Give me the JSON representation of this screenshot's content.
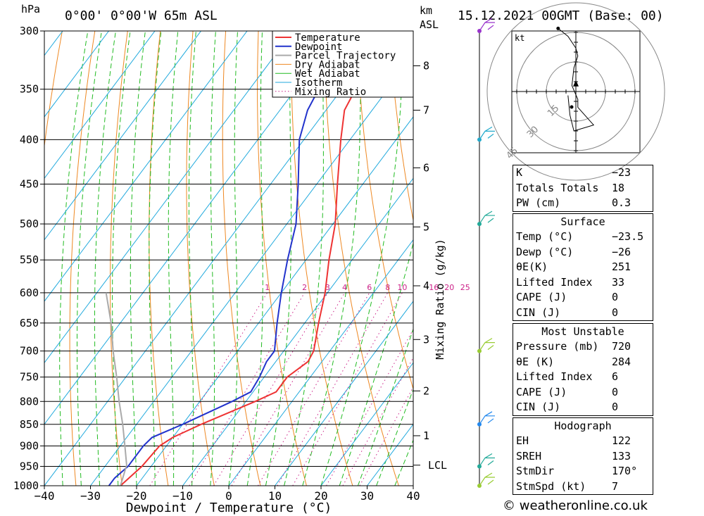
{
  "header": {
    "location": "0°00' 0°00'W 65m ASL",
    "datetime": "15.12.2021 00GMT (Base: 00)",
    "p_unit": "hPa",
    "km_unit_1": "km",
    "km_unit_2": "ASL"
  },
  "chart_data": {
    "type": "line",
    "xlabel": "Dewpoint / Temperature (°C)",
    "ylabel_right": "Mixing Ratio (g/kg)",
    "xlim": [
      -40,
      40
    ],
    "ylim": [
      1000,
      300
    ],
    "y_scale": "log",
    "pressure_levels": [
      300,
      350,
      400,
      450,
      500,
      550,
      600,
      650,
      700,
      750,
      800,
      850,
      900,
      950,
      1000
    ],
    "x_ticks": [
      -40,
      -30,
      -20,
      -10,
      0,
      10,
      20,
      30,
      40
    ],
    "x_tick_labels": [
      "−40",
      "−30",
      "−20",
      "−10",
      "0",
      "10",
      "20",
      "30",
      "40"
    ],
    "km_ticks": [
      {
        "label": "8",
        "p": 329
      },
      {
        "label": "7",
        "p": 370
      },
      {
        "label": "6",
        "p": 431
      },
      {
        "label": "5",
        "p": 504
      },
      {
        "label": "4",
        "p": 589
      },
      {
        "label": "3",
        "p": 679
      },
      {
        "label": "2",
        "p": 778
      },
      {
        "label": "1",
        "p": 876
      },
      {
        "label": "LCL",
        "p": 947
      }
    ],
    "mixing_ratios": [
      1,
      2,
      3,
      4,
      6,
      8,
      10,
      16,
      20,
      25
    ],
    "mixing_ratio_labels": [
      "1",
      "2",
      "3",
      "4",
      "6",
      "8",
      "10",
      "16",
      "20",
      "25"
    ],
    "legend": [
      "Temperature",
      "Dewpoint",
      "Parcel Trajectory",
      "Dry Adiabat",
      "Wet Adiabat",
      "Isotherm",
      "Mixing Ratio"
    ],
    "legend_placement": "top-center",
    "colors": {
      "temperature": "#ee3333",
      "dewpoint": "#2233cc",
      "parcel": "#aaaaaa",
      "dry_adiabat": "#ee8822",
      "wet_adiabat": "#22bb22",
      "isotherm": "#22aadd",
      "mixing_ratio": "#cc2288"
    },
    "series": [
      {
        "name": "Temperature",
        "points": [
          [
            1000,
            -23.5
          ],
          [
            950,
            -22
          ],
          [
            900,
            -21.5
          ],
          [
            880,
            -20
          ],
          [
            850,
            -16
          ],
          [
            800,
            -8
          ],
          [
            780,
            -5
          ],
          [
            750,
            -5
          ],
          [
            720,
            -3
          ],
          [
            700,
            -3.5
          ],
          [
            650,
            -7
          ],
          [
            600,
            -10.5
          ],
          [
            550,
            -15
          ],
          [
            500,
            -19.5
          ],
          [
            450,
            -25.5
          ],
          [
            400,
            -32
          ],
          [
            370,
            -36
          ],
          [
            350,
            -37
          ],
          [
            300,
            -43
          ]
        ]
      },
      {
        "name": "Dewpoint",
        "points": [
          [
            1000,
            -26
          ],
          [
            980,
            -26
          ],
          [
            950,
            -25
          ],
          [
            900,
            -25
          ],
          [
            880,
            -24.5
          ],
          [
            850,
            -20
          ],
          [
            800,
            -13
          ],
          [
            780,
            -10.5
          ],
          [
            750,
            -11
          ],
          [
            720,
            -12
          ],
          [
            700,
            -12
          ],
          [
            650,
            -16
          ],
          [
            600,
            -20
          ],
          [
            550,
            -24
          ],
          [
            500,
            -28
          ],
          [
            450,
            -34
          ],
          [
            400,
            -41
          ],
          [
            370,
            -44
          ],
          [
            350,
            -45
          ],
          [
            300,
            -49
          ]
        ]
      },
      {
        "name": "Parcel Trajectory",
        "points": [
          [
            1000,
            -23.5
          ],
          [
            947,
            -25.5
          ],
          [
            900,
            -29
          ],
          [
            850,
            -33
          ],
          [
            800,
            -37.5
          ],
          [
            750,
            -42
          ],
          [
            700,
            -47
          ],
          [
            650,
            -52
          ],
          [
            600,
            -58
          ]
        ]
      }
    ],
    "wind_profile": [
      {
        "p": 300,
        "color": "#9933cc"
      },
      {
        "p": 400,
        "color": "#22aacc"
      },
      {
        "p": 500,
        "color": "#22aa99"
      },
      {
        "p": 700,
        "color": "#99cc33"
      },
      {
        "p": 850,
        "color": "#2288ee"
      },
      {
        "p": 950,
        "color": "#22aa99"
      },
      {
        "p": 1000,
        "color": "#99cc33"
      }
    ],
    "hodograph": {
      "unit": "kt",
      "ring_labels": [
        "15",
        "30",
        "45"
      ],
      "path_kt": [
        [
          -4,
          -2
        ],
        [
          -3,
          -12
        ],
        [
          -1,
          -20
        ],
        [
          9,
          -17
        ],
        [
          1,
          -8
        ],
        [
          1,
          -4
        ],
        [
          -2,
          3
        ],
        [
          -1,
          12
        ],
        [
          1,
          18
        ],
        [
          0,
          22
        ],
        [
          -4,
          28
        ],
        [
          -9,
          32
        ]
      ],
      "storm_motion": [
        0,
        4
      ]
    }
  },
  "indices": [
    {
      "label": "K",
      "value": "−23"
    },
    {
      "label": "Totals Totals",
      "value": "18"
    },
    {
      "label": "PW (cm)",
      "value": "0.3"
    }
  ],
  "surface": {
    "title": "Surface",
    "rows": [
      {
        "label": "Temp (°C)",
        "value": "−23.5"
      },
      {
        "label": "Dewp (°C)",
        "value": "−26"
      },
      {
        "label": "θE(K)",
        "value": "251"
      },
      {
        "label": "Lifted Index",
        "value": "33"
      },
      {
        "label": "CAPE (J)",
        "value": "0"
      },
      {
        "label": "CIN (J)",
        "value": "0"
      }
    ]
  },
  "most_unstable": {
    "title": "Most Unstable",
    "rows": [
      {
        "label": "Pressure (mb)",
        "value": "720"
      },
      {
        "label": "θE (K)",
        "value": "284"
      },
      {
        "label": "Lifted Index",
        "value": "6"
      },
      {
        "label": "CAPE (J)",
        "value": "0"
      },
      {
        "label": "CIN (J)",
        "value": "0"
      }
    ]
  },
  "hodograph_table": {
    "title": "Hodograph",
    "rows": [
      {
        "label": "EH",
        "value": "122"
      },
      {
        "label": "SREH",
        "value": "133"
      },
      {
        "label": "StmDir",
        "value": "170°"
      },
      {
        "label": "StmSpd (kt)",
        "value": "7"
      }
    ]
  },
  "footer": "© weatheronline.co.uk"
}
